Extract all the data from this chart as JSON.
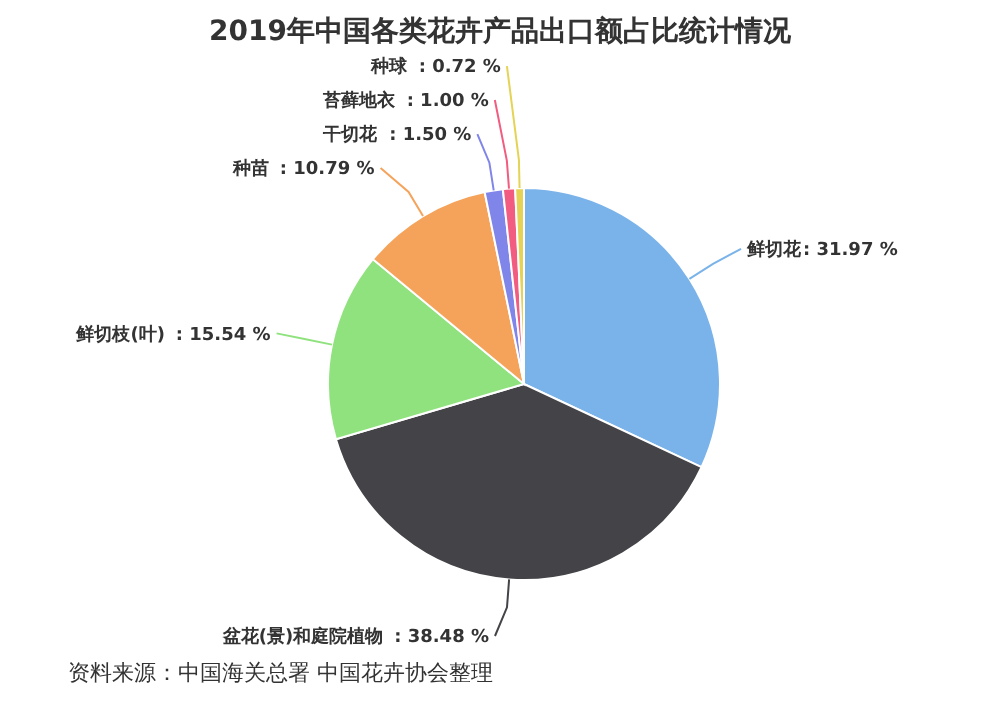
{
  "chart_data": {
    "type": "pie",
    "title": "2019年中国各类花卉产品出口额占比统计情况",
    "categories": [
      "鲜切花",
      "盆花(景)和庭院植物",
      "鲜切枝(叶)",
      "种苗",
      "干切花",
      "苔藓地衣",
      "种球"
    ],
    "values": [
      31.97,
      38.48,
      15.54,
      10.79,
      1.5,
      1.0,
      0.72
    ],
    "value_labels": [
      ": 31.97 %",
      ": 38.48 %",
      ": 15.54 %",
      ": 10.79 %",
      ": 1.50 %",
      ": 1.00 %",
      ": 0.72 %"
    ],
    "colors": [
      "#7ab3ea",
      "#434348",
      "#90e27e",
      "#f5a35a",
      "#8085e9",
      "#f15c80",
      "#e4d354"
    ],
    "annotations": [
      "资料来源：中国海关总署 中国花卉协会整理"
    ]
  }
}
